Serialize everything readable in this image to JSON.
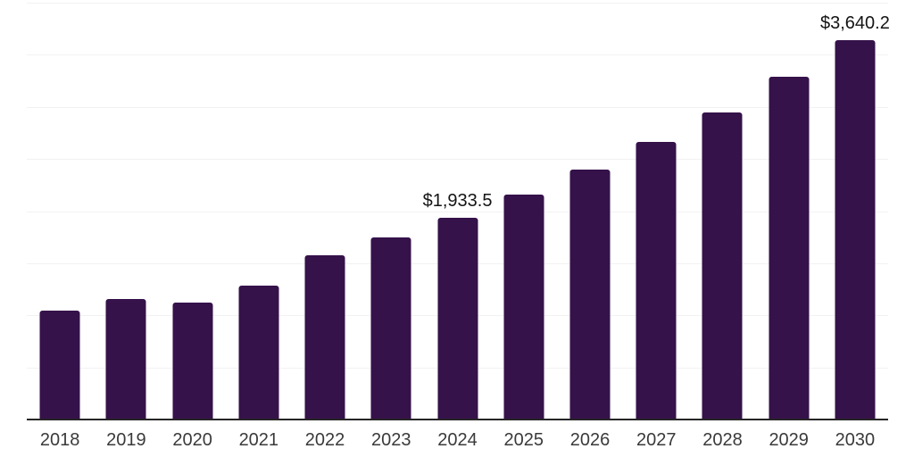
{
  "chart": {
    "background_color": "#ffffff",
    "bar_color": "#35124A",
    "grid_color": "#f2f2f2",
    "axis_color": "#262626",
    "x_label_color": "#3a3a3a",
    "value_label_color": "#141414"
  },
  "chart_data": {
    "type": "bar",
    "title": "",
    "xlabel": "",
    "ylabel": "",
    "ylim": [
      0,
      4000
    ],
    "grid": true,
    "grid_interval": 500,
    "legend": false,
    "y_axis_tick_labels_visible": false,
    "categories": [
      "2018",
      "2019",
      "2020",
      "2021",
      "2022",
      "2023",
      "2024",
      "2025",
      "2026",
      "2027",
      "2028",
      "2029",
      "2030"
    ],
    "values": [
      1045,
      1155,
      1120,
      1285,
      1580,
      1745,
      1933.5,
      2155,
      2400,
      2660,
      2950,
      3290,
      3640.2
    ],
    "value_labels": {
      "2024": "$1,933.5",
      "2030": "$3,640.2"
    }
  }
}
